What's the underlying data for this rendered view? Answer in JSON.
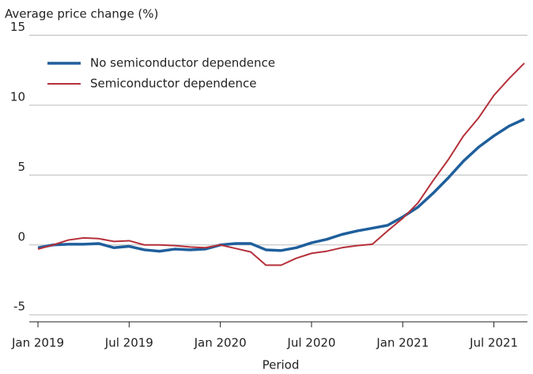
{
  "chart_data": {
    "type": "line",
    "y_label": "Average price change (%)",
    "x_label": "Period",
    "categories": [
      "Jan 2019",
      null,
      null,
      null,
      null,
      null,
      "Jul 2019",
      null,
      null,
      null,
      null,
      null,
      "Jan 2020",
      null,
      null,
      null,
      null,
      null,
      "Jul 2020",
      null,
      null,
      null,
      null,
      null,
      "Jan 2021",
      null,
      null,
      null,
      null,
      null,
      "Jul 2021",
      null,
      null
    ],
    "series": [
      {
        "name": "No semiconductor dependence",
        "color": "#1f5f9c",
        "values": [
          -0.2,
          0.0,
          0.05,
          0.05,
          0.1,
          -0.2,
          -0.1,
          -0.35,
          -0.45,
          -0.3,
          -0.35,
          -0.3,
          0.0,
          0.1,
          0.1,
          -0.35,
          -0.4,
          -0.2,
          0.15,
          0.4,
          0.75,
          1.0,
          1.2,
          1.4,
          2.0,
          2.7,
          3.7,
          4.8,
          6.0,
          7.0,
          7.8,
          8.5,
          9.0
        ]
      },
      {
        "name": "Semiconductor dependence",
        "color": "#b5303a",
        "values": [
          -0.3,
          0.0,
          0.35,
          0.5,
          0.45,
          0.25,
          0.3,
          0.0,
          0.0,
          -0.05,
          -0.15,
          -0.2,
          0.0,
          -0.25,
          -0.5,
          -1.45,
          -1.45,
          -0.95,
          -0.6,
          -0.45,
          -0.2,
          -0.05,
          0.05,
          1.0,
          1.9,
          3.0,
          4.6,
          6.1,
          7.8,
          9.1,
          10.7,
          11.9,
          13.0
        ]
      }
    ],
    "ylim": [
      -5.5,
      15.2
    ],
    "yticks": [
      -5,
      0,
      5,
      10,
      15
    ],
    "grid": true,
    "legend": "upper left"
  }
}
